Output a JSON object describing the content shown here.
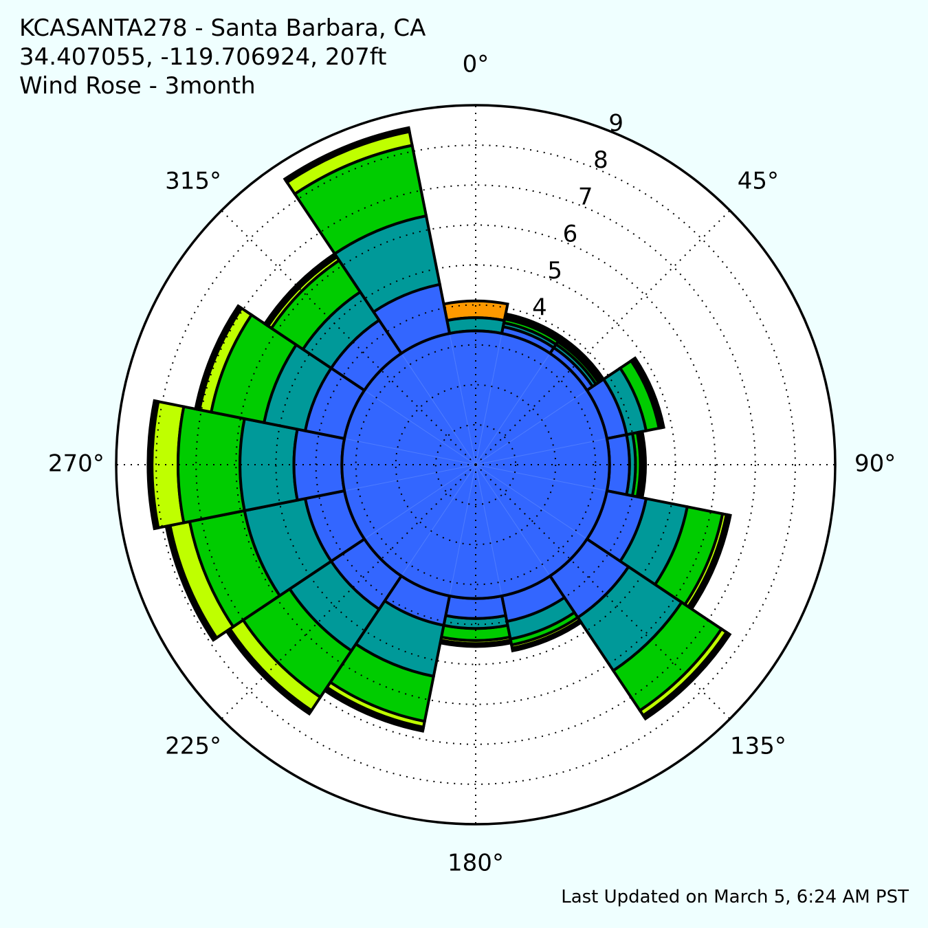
{
  "header": {
    "line1": "KCASANTA278 - Santa Barbara, CA",
    "line2": "34.407055, -119.706924, 207ft",
    "line3": "Wind Rose - 3month"
  },
  "footer": {
    "updated": "Last Updated on March 5, 6:24 AM PST"
  },
  "chart_data": {
    "type": "wind_rose",
    "direction_unit": "degrees",
    "sectors_deg": [
      0,
      22.5,
      45,
      67.5,
      90,
      112.5,
      135,
      157.5,
      180,
      202.5,
      225,
      247.5,
      270,
      292.5,
      315,
      337.5
    ],
    "bin_colors": [
      "#3366ff",
      "#009999",
      "#00cc00",
      "#bfff00",
      "#ffcc00",
      "#ff9900"
    ],
    "cumulative_radius": [
      [
        3.35,
        3.35,
        3.68,
        3.68,
        3.68,
        3.68,
        4.1
      ],
      [
        3.35,
        3.52,
        3.62,
        3.72,
        3.76,
        3.8,
        3.85
      ],
      [
        3.35,
        3.52,
        3.62,
        3.7,
        3.76,
        3.8,
        3.85
      ],
      [
        3.35,
        3.85,
        4.35,
        4.68,
        4.74,
        4.78,
        4.8
      ],
      [
        3.35,
        3.85,
        4.0,
        4.12,
        4.18,
        4.22,
        4.25
      ],
      [
        3.35,
        4.35,
        5.4,
        6.3,
        6.4,
        6.45,
        6.5
      ],
      [
        3.35,
        4.6,
        6.2,
        7.4,
        7.55,
        7.6,
        7.65
      ],
      [
        3.35,
        4.0,
        4.45,
        4.6,
        4.68,
        4.72,
        4.75
      ],
      [
        3.35,
        3.85,
        4.1,
        4.4,
        4.48,
        4.52,
        4.55
      ],
      [
        3.35,
        4.1,
        5.4,
        6.55,
        6.7,
        6.75,
        6.8
      ],
      [
        3.35,
        4.35,
        5.6,
        7.0,
        7.4,
        7.45,
        7.5
      ],
      [
        3.35,
        4.35,
        5.9,
        7.3,
        7.8,
        7.85,
        7.9
      ],
      [
        3.35,
        4.55,
        5.9,
        7.45,
        8.1,
        8.15,
        8.2
      ],
      [
        3.35,
        4.35,
        5.4,
        6.75,
        7.05,
        7.1,
        7.15
      ],
      [
        3.35,
        4.35,
        5.2,
        6.15,
        6.25,
        6.3,
        6.35
      ],
      [
        3.35,
        4.6,
        6.35,
        8.15,
        8.5,
        8.55,
        8.6
      ]
    ],
    "radial_ticks": [
      "4",
      "5",
      "6",
      "7",
      "8",
      "9"
    ],
    "radial_tick_values": [
      4,
      5,
      6,
      7,
      8,
      9
    ],
    "r_max": 9,
    "angle_ticks": [
      "0°",
      "45°",
      "90°",
      "135°",
      "180°",
      "225°",
      "270°",
      "315°"
    ],
    "angle_tick_values": [
      0,
      45,
      90,
      135,
      180,
      225,
      270,
      315
    ],
    "grid": true,
    "background": "#efffff",
    "plot_background": "#ffffff"
  }
}
